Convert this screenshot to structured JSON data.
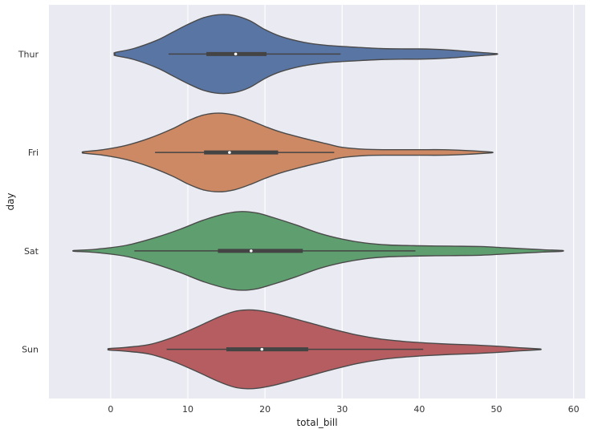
{
  "chart_data": {
    "type": "violin",
    "orientation": "horizontal",
    "xlabel": "total_bill",
    "ylabel": "day",
    "xlim": [
      -8,
      61.5
    ],
    "xticks": [
      0,
      10,
      20,
      30,
      40,
      50,
      60
    ],
    "grid": true,
    "categories": [
      "Thur",
      "Fri",
      "Sat",
      "Sun"
    ],
    "colors": [
      "#5875a4",
      "#cc8963",
      "#5f9e6e",
      "#b55d60"
    ],
    "series": [
      {
        "category": "Thur",
        "color": "#5875a4",
        "min": 7.5,
        "q1": 12.4,
        "median": 16.2,
        "q3": 20.2,
        "max": 29.8,
        "kde_extent": [
          0.6,
          50.0
        ],
        "density_profile": [
          [
            0.6,
            0.04
          ],
          [
            3,
            0.14
          ],
          [
            6,
            0.35
          ],
          [
            8,
            0.55
          ],
          [
            10,
            0.75
          ],
          [
            12,
            0.92
          ],
          [
            14,
            1.0
          ],
          [
            16,
            0.98
          ],
          [
            18,
            0.85
          ],
          [
            20,
            0.62
          ],
          [
            22,
            0.45
          ],
          [
            25,
            0.3
          ],
          [
            28,
            0.22
          ],
          [
            32,
            0.17
          ],
          [
            35,
            0.14
          ],
          [
            38,
            0.13
          ],
          [
            40,
            0.13
          ],
          [
            42,
            0.12
          ],
          [
            44,
            0.1
          ],
          [
            46,
            0.07
          ],
          [
            48,
            0.04
          ],
          [
            50,
            0.01
          ]
        ]
      },
      {
        "category": "Fri",
        "color": "#cc8963",
        "min": 5.75,
        "q1": 12.1,
        "median": 15.4,
        "q3": 21.7,
        "max": 28.97,
        "kde_extent": [
          -3.5,
          49.3
        ],
        "density_profile": [
          [
            -3.5,
            0.02
          ],
          [
            -1,
            0.07
          ],
          [
            2,
            0.18
          ],
          [
            5,
            0.36
          ],
          [
            8,
            0.6
          ],
          [
            10,
            0.8
          ],
          [
            12,
            0.95
          ],
          [
            14,
            1.0
          ],
          [
            16,
            0.95
          ],
          [
            18,
            0.82
          ],
          [
            20,
            0.66
          ],
          [
            22,
            0.52
          ],
          [
            25,
            0.36
          ],
          [
            28,
            0.22
          ],
          [
            30,
            0.13
          ],
          [
            33,
            0.08
          ],
          [
            36,
            0.07
          ],
          [
            40,
            0.07
          ],
          [
            43,
            0.07
          ],
          [
            46,
            0.05
          ],
          [
            49.3,
            0.01
          ]
        ]
      },
      {
        "category": "Sat",
        "color": "#5f9e6e",
        "min": 3.07,
        "q1": 13.9,
        "median": 18.2,
        "q3": 24.9,
        "max": 39.5,
        "kde_extent": [
          -4.7,
          58.5
        ],
        "density_profile": [
          [
            -4.7,
            0.01
          ],
          [
            -2,
            0.04
          ],
          [
            2,
            0.14
          ],
          [
            6,
            0.35
          ],
          [
            9,
            0.55
          ],
          [
            12,
            0.78
          ],
          [
            15,
            0.95
          ],
          [
            17,
            1.0
          ],
          [
            19,
            0.96
          ],
          [
            21,
            0.85
          ],
          [
            24,
            0.66
          ],
          [
            27,
            0.45
          ],
          [
            30,
            0.3
          ],
          [
            33,
            0.2
          ],
          [
            36,
            0.15
          ],
          [
            40,
            0.13
          ],
          [
            44,
            0.12
          ],
          [
            48,
            0.11
          ],
          [
            51,
            0.08
          ],
          [
            54,
            0.05
          ],
          [
            56,
            0.03
          ],
          [
            58.5,
            0.01
          ]
        ]
      },
      {
        "category": "Sun",
        "color": "#b55d60",
        "min": 7.25,
        "q1": 14.99,
        "median": 19.6,
        "q3": 25.6,
        "max": 40.5,
        "kde_extent": [
          -0.2,
          55.6
        ],
        "density_profile": [
          [
            -0.2,
            0.02
          ],
          [
            2,
            0.05
          ],
          [
            5,
            0.12
          ],
          [
            8,
            0.3
          ],
          [
            11,
            0.55
          ],
          [
            14,
            0.82
          ],
          [
            16,
            0.96
          ],
          [
            17.5,
            1.0
          ],
          [
            19,
            0.99
          ],
          [
            21,
            0.92
          ],
          [
            23,
            0.82
          ],
          [
            26,
            0.66
          ],
          [
            29,
            0.5
          ],
          [
            32,
            0.36
          ],
          [
            35,
            0.26
          ],
          [
            38,
            0.2
          ],
          [
            41,
            0.16
          ],
          [
            44,
            0.13
          ],
          [
            47,
            0.11
          ],
          [
            50,
            0.08
          ],
          [
            53,
            0.04
          ],
          [
            55.6,
            0.01
          ]
        ]
      }
    ]
  }
}
